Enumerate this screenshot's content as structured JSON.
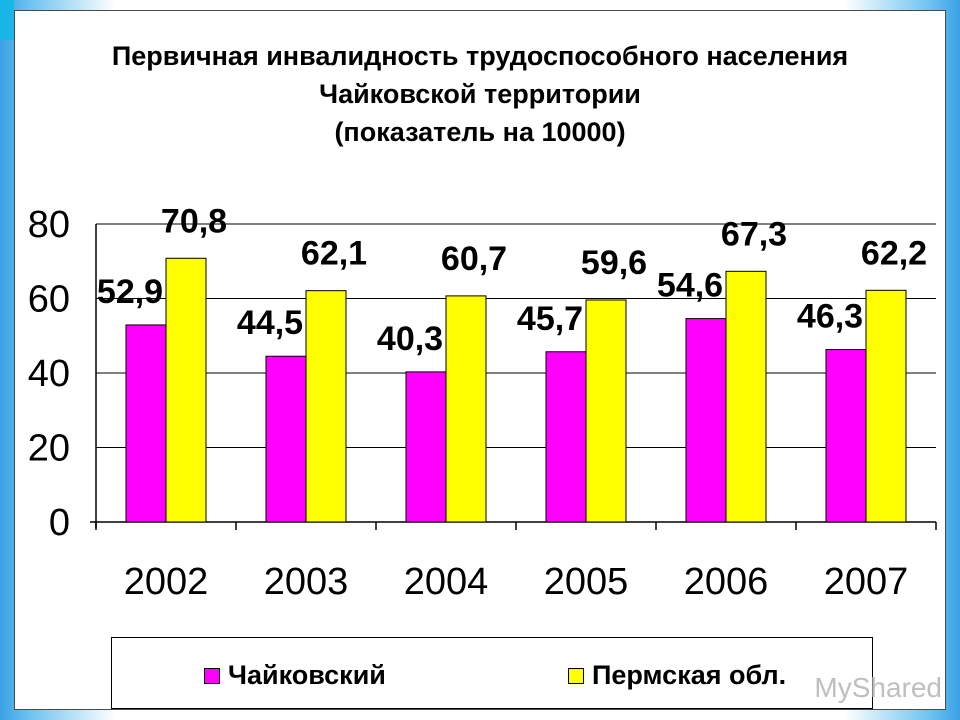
{
  "title_lines": [
    "Первичная инвалидность трудоспособного населения",
    "Чайковской территории",
    "(показатель на 10000)"
  ],
  "watermark": "MyShared",
  "colors": {
    "accent": "#19b6e8",
    "series1": "#ff00ff",
    "series2": "#ffff00"
  },
  "chart_data": {
    "type": "bar",
    "title": "Первичная инвалидность трудоспособного населения Чайковской территории (показатель на 10000)",
    "categories": [
      "2002",
      "2003",
      "2004",
      "2005",
      "2006",
      "2007"
    ],
    "series": [
      {
        "name": "Чайковский",
        "values": [
          52.9,
          44.5,
          40.3,
          45.7,
          54.6,
          46.3
        ],
        "labels": [
          "52,9",
          "44,5",
          "40,3",
          "45,7",
          "54,6",
          "46,3"
        ],
        "color": "#ff00ff"
      },
      {
        "name": "Пермская обл.",
        "values": [
          70.8,
          62.1,
          60.7,
          59.6,
          67.3,
          62.2
        ],
        "labels": [
          "70,8",
          "62,1",
          "60,7",
          "59,6",
          "67,3",
          "62,2"
        ],
        "color": "#ffff00"
      }
    ],
    "yticks": [
      "0",
      "20",
      "40",
      "60",
      "80"
    ],
    "ylim": [
      0,
      80
    ],
    "grid": true,
    "legend_position": "bottom"
  }
}
